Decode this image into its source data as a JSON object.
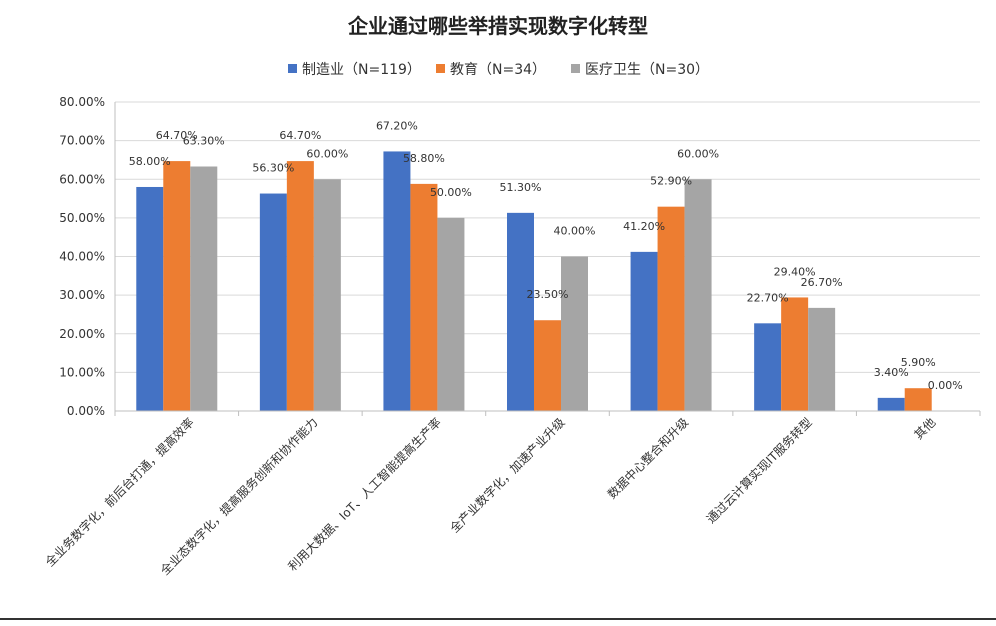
{
  "chart_data": {
    "type": "bar",
    "title": "企业通过哪些举措实现数字化转型",
    "categories": [
      "全业务数字化，前后台打通，提高效率",
      "全业态数字化，提高服务创新和协作能力",
      "利用大数据、IoT、人工智能提高生产率",
      "全产业数字化，加速产业升级",
      "数据中心整合和升级",
      "通过云计算实现IT服务转型",
      "其他"
    ],
    "series": [
      {
        "name": "制造业（N=119）",
        "color": "#4472C4",
        "values": [
          58.0,
          56.3,
          67.2,
          51.3,
          41.2,
          22.7,
          3.4
        ]
      },
      {
        "name": "教育（N=34）",
        "color": "#ED7D31",
        "values": [
          64.7,
          64.7,
          58.8,
          23.5,
          52.9,
          29.4,
          5.9
        ]
      },
      {
        "name": "医疗卫生（N=30）",
        "color": "#A5A5A5",
        "values": [
          63.3,
          60.0,
          50.0,
          40.0,
          60.0,
          26.7,
          0.0
        ]
      }
    ],
    "data_labels": [
      [
        "58.00%",
        "56.30%",
        "67.20%",
        "51.30%",
        "41.20%",
        "22.70%",
        "3.40%"
      ],
      [
        "64.70%",
        "64.70%",
        "58.80%",
        "23.50%",
        "52.90%",
        "29.40%",
        "5.90%"
      ],
      [
        "63.30%",
        "60.00%",
        "50.00%",
        "40.00%",
        "60.00%",
        "26.70%",
        "0.00%"
      ]
    ],
    "yticks": [
      "0.00%",
      "10.00%",
      "20.00%",
      "30.00%",
      "40.00%",
      "50.00%",
      "60.00%",
      "70.00%",
      "80.00%"
    ],
    "ylim": [
      0,
      80
    ],
    "grid": true,
    "legend_position": "top"
  }
}
